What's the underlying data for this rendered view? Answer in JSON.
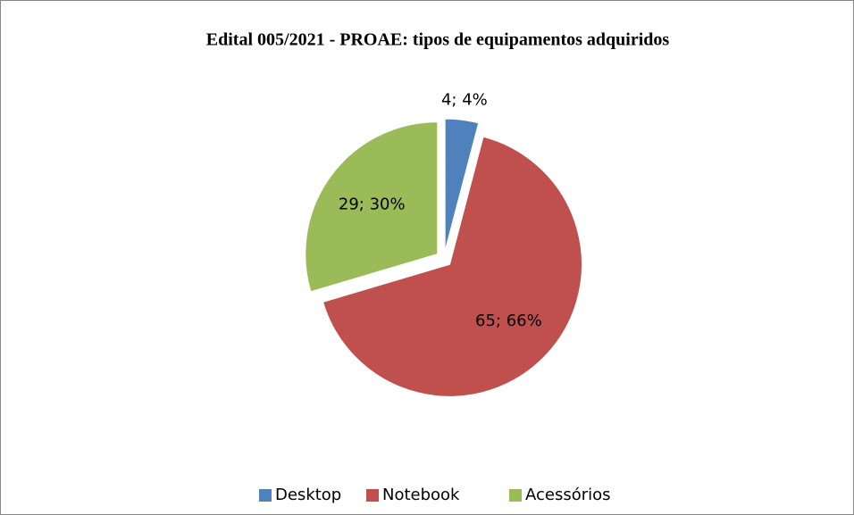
{
  "chart_data": {
    "type": "pie",
    "title": "Edital 005/2021 - PROAE: tipos de equipamentos adquiridos",
    "categories": [
      "Desktop",
      "Notebook",
      "Acessórios"
    ],
    "values": [
      4,
      65,
      29
    ],
    "value_labels": [
      "4; 4%",
      "65; 66%",
      "29; 30%"
    ],
    "colors": [
      "#4f81bd",
      "#c0504d",
      "#9bbb59"
    ],
    "legend": "bottom"
  }
}
